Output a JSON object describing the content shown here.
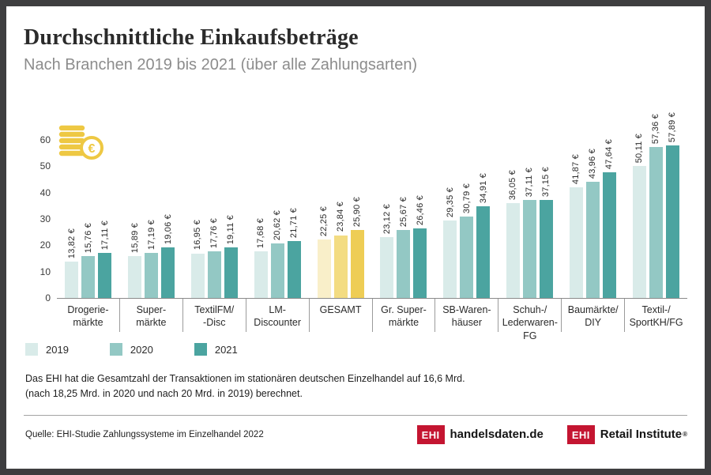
{
  "header": {
    "title": "Durchschnittliche Einkaufsbeträge",
    "subtitle": "Nach Branchen 2019 bis 2021 (über alle Zahlungsarten)"
  },
  "chart_data": {
    "type": "bar",
    "title": "Durchschnittliche Einkaufsbeträge",
    "subtitle": "Nach Branchen 2019 bis 2021 (über alle Zahlungsarten)",
    "unit": "€",
    "ylim": [
      0,
      60
    ],
    "yticks": [
      0,
      10,
      20,
      30,
      40,
      50,
      60
    ],
    "grid": false,
    "legend_position": "bottom-left",
    "categories": [
      [
        "Drogerie-",
        "märkte"
      ],
      [
        "Super-",
        "märkte"
      ],
      [
        "TextilFM/",
        "-Disc"
      ],
      [
        "LM-",
        "Discounter"
      ],
      [
        "GESAMT"
      ],
      [
        "Gr. Super-",
        "märkte"
      ],
      [
        "SB-Waren-",
        "häuser"
      ],
      [
        "Schuh-/",
        "Lederwaren-FG"
      ],
      [
        "Baumärkte/",
        "DIY"
      ],
      [
        "Textil-/",
        "SportKH/FG"
      ]
    ],
    "series": [
      {
        "name": "2019",
        "values": [
          13.82,
          15.89,
          16.95,
          17.68,
          22.25,
          23.12,
          29.35,
          36.05,
          41.87,
          50.11
        ]
      },
      {
        "name": "2020",
        "values": [
          15.76,
          17.19,
          17.76,
          20.62,
          23.84,
          25.67,
          30.79,
          37.11,
          43.96,
          57.36
        ]
      },
      {
        "name": "2021",
        "values": [
          17.11,
          19.06,
          19.11,
          21.71,
          25.9,
          26.46,
          34.91,
          37.15,
          47.64,
          57.89
        ]
      }
    ],
    "highlight_index": 4,
    "series_colors": [
      "#d9ebe9",
      "#93c8c4",
      "#4ba4a0"
    ],
    "highlight_colors": [
      "#f9efc9",
      "#f3dc82",
      "#eecd55"
    ]
  },
  "legend": {
    "items": [
      {
        "label": "2019",
        "color": "#d9ebe9"
      },
      {
        "label": "2020",
        "color": "#93c8c4"
      },
      {
        "label": "2021",
        "color": "#4ba4a0"
      }
    ]
  },
  "footnote": {
    "line1": "Das EHI hat die Gesamtzahl der Transaktionen im stationären deutschen Einzelhandel auf 16,6 Mrd.",
    "line2": "(nach 18,25 Mrd. in 2020 und nach 20 Mrd. in 2019) berechnet."
  },
  "footer": {
    "source": "Quelle: EHI-Studie Zahlungssysteme im Einzelhandel 2022",
    "logo1": {
      "box": "EHI",
      "text": "handelsdaten.de"
    },
    "logo2": {
      "box": "EHI",
      "text": "Retail Institute",
      "registered": "®"
    }
  },
  "colors": {
    "frame_border": "#3e3e40",
    "ehi_red": "#c41531",
    "coin_gold": "#eec843",
    "axis": "#8a8a8a"
  }
}
